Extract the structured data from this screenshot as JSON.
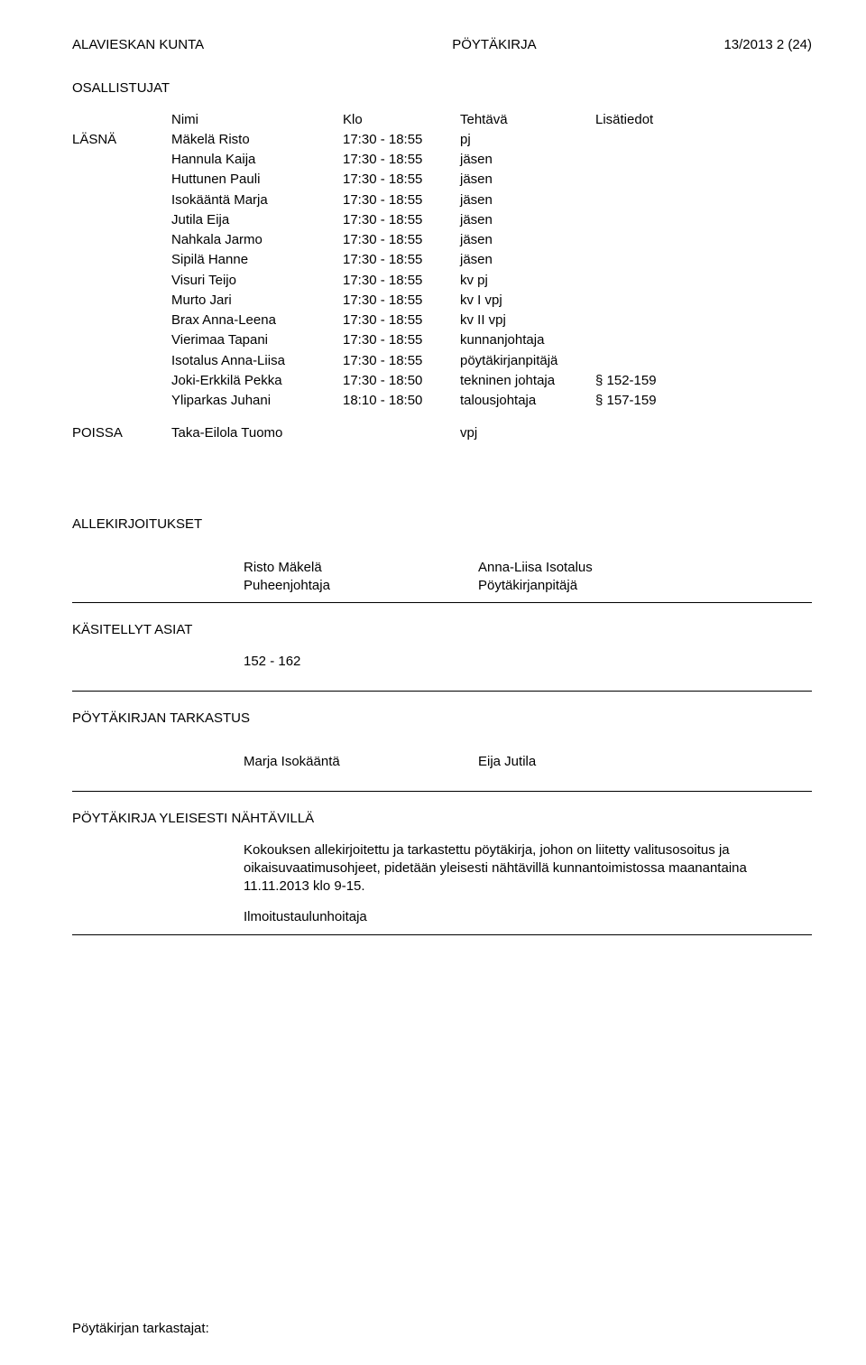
{
  "header": {
    "org": "ALAVIESKAN KUNTA",
    "doc_type": "PÖYTÄKIRJA",
    "page_ref": "13/2013  2 (24)"
  },
  "participants_title": "OSALLISTUJAT",
  "table_header": {
    "name": "Nimi",
    "time": "Klo",
    "role": "Tehtävä",
    "note": "Lisätiedot"
  },
  "present_label": "LÄSNÄ",
  "absent_label": "POISSA",
  "present": [
    {
      "name": "Mäkelä Risto",
      "time": "17:30 - 18:55",
      "role": "pj",
      "note": ""
    },
    {
      "name": "Hannula Kaija",
      "time": "17:30 - 18:55",
      "role": "jäsen",
      "note": ""
    },
    {
      "name": "Huttunen Pauli",
      "time": "17:30 - 18:55",
      "role": "jäsen",
      "note": ""
    },
    {
      "name": "Isokääntä Marja",
      "time": "17:30 - 18:55",
      "role": "jäsen",
      "note": ""
    },
    {
      "name": "Jutila Eija",
      "time": "17:30 - 18:55",
      "role": "jäsen",
      "note": ""
    },
    {
      "name": "Nahkala Jarmo",
      "time": "17:30 - 18:55",
      "role": "jäsen",
      "note": ""
    },
    {
      "name": "Sipilä Hanne",
      "time": "17:30 - 18:55",
      "role": "jäsen",
      "note": ""
    },
    {
      "name": "Visuri Teijo",
      "time": "17:30 - 18:55",
      "role": "kv pj",
      "note": ""
    },
    {
      "name": "Murto Jari",
      "time": "17:30 - 18:55",
      "role": "kv I vpj",
      "note": ""
    },
    {
      "name": "Brax Anna-Leena",
      "time": "17:30 - 18:55",
      "role": "kv II vpj",
      "note": ""
    },
    {
      "name": "Vierimaa Tapani",
      "time": "17:30 - 18:55",
      "role": "kunnanjohtaja",
      "note": ""
    },
    {
      "name": "Isotalus Anna-Liisa",
      "time": "17:30 - 18:55",
      "role": "pöytäkirjanpitäjä",
      "note": ""
    },
    {
      "name": "Joki-Erkkilä Pekka",
      "time": "17:30 - 18:50",
      "role": "tekninen johtaja",
      "note": "§ 152-159"
    },
    {
      "name": "Yliparkas Juhani",
      "time": "18:10 - 18:50",
      "role": "talousjohtaja",
      "note": "§ 157-159"
    }
  ],
  "absent": [
    {
      "name": "Taka-Eilola Tuomo",
      "time": "",
      "role": "vpj",
      "note": ""
    }
  ],
  "signatures_title": "ALLEKIRJOITUKSET",
  "signatures": {
    "left_name": "Risto Mäkelä",
    "left_role": "Puheenjohtaja",
    "right_name": "Anna-Liisa Isotalus",
    "right_role": "Pöytäkirjanpitäjä"
  },
  "handled_title": "KÄSITELLYT ASIAT",
  "handled_range": "152 - 162",
  "review_title": "PÖYTÄKIRJAN TARKASTUS",
  "reviewers": {
    "left": "Marja Isokääntä",
    "right": "Eija Jutila"
  },
  "public_title": "PÖYTÄKIRJA YLEISESTI NÄHTÄVILLÄ",
  "public_text": "Kokouksen allekirjoitettu ja tarkastettu pöytäkirja, johon on liitetty valitusosoitus ja oikaisuvaatimusohjeet, pidetään yleisesti nähtävillä kunnantoimistossa maanantaina 11.11.2013 klo 9-15.",
  "public_signer": "Ilmoitustaulunhoitaja",
  "footer": "Pöytäkirjan tarkastajat:"
}
